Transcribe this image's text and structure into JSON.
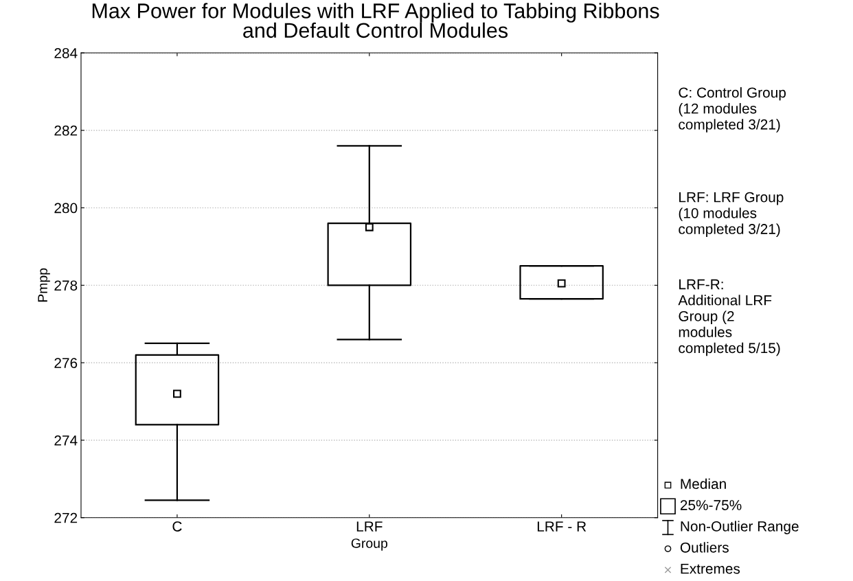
{
  "chart_data": {
    "type": "box",
    "title": "Max Power for Modules with LRF Applied to Tabbing Ribbons\nand Default Control Modules",
    "xlabel": "Group",
    "ylabel": "Pmpp",
    "categories": [
      "C",
      "LRF",
      "LRF - R"
    ],
    "boxes": [
      {
        "low": 272.45,
        "q1": 274.4,
        "median": 275.2,
        "q3": 276.2,
        "high": 276.5
      },
      {
        "low": 276.6,
        "q1": 278.0,
        "median": 279.5,
        "q3": 279.6,
        "high": 281.6
      },
      {
        "low": 277.65,
        "q1": 277.65,
        "median": 278.05,
        "q3": 278.5,
        "high": 278.5
      }
    ],
    "ylim": [
      272,
      284
    ],
    "yticks": [
      272,
      274,
      276,
      278,
      280,
      282,
      284
    ],
    "grid": "y",
    "annotations": [
      "C: Control Group\n(12 modules\ncompleted 3/21)",
      "LRF: LRF Group\n(10 modules\ncompleted 3/21)",
      "LRF-R:\nAdditional LRF\nGroup (2\nmodules\ncompleted 5/15)",
      "Median",
      "25%-75%",
      "Non-Outlier Range",
      "Outliers",
      "Extremes"
    ]
  }
}
